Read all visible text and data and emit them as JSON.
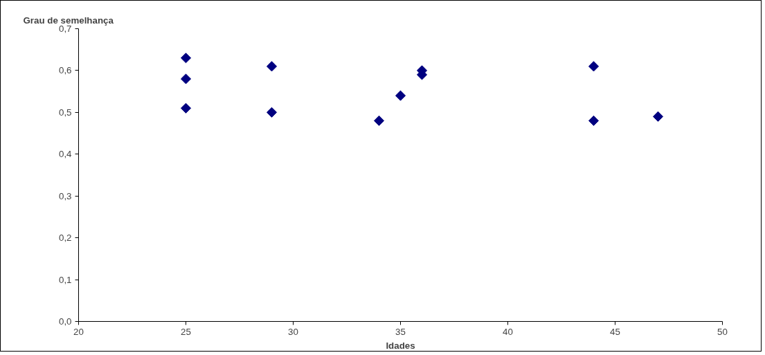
{
  "chart_data": {
    "type": "scatter",
    "xlabel": "Idades",
    "ylabel": "Grau de semelhança",
    "x": [
      25,
      25,
      25,
      29,
      29,
      34,
      35,
      36,
      36,
      44,
      44,
      47
    ],
    "series": [
      {
        "color": "#000080",
        "values": [
          0.63,
          0.58,
          0.51,
          0.61,
          0.5,
          0.48,
          0.54,
          0.6,
          0.59,
          0.61,
          0.48,
          0.49
        ]
      }
    ],
    "marker": "diamond",
    "grid": false,
    "xlim": [
      20,
      50
    ],
    "xticks": [
      20,
      25,
      30,
      35,
      40,
      45,
      50
    ],
    "ylim": [
      0,
      0.7
    ],
    "yticks": [
      {
        "value": 0,
        "label": "0,0"
      },
      {
        "value": 0.1,
        "label": "0,1"
      },
      {
        "value": 0.2,
        "label": "0,2"
      },
      {
        "value": 0.3,
        "label": "0,3"
      },
      {
        "value": 0.4,
        "label": "0,4"
      },
      {
        "value": 0.5,
        "label": "0,5"
      },
      {
        "value": 0.6,
        "label": "0,6"
      },
      {
        "value": 0.7,
        "label": "0,7"
      }
    ]
  }
}
